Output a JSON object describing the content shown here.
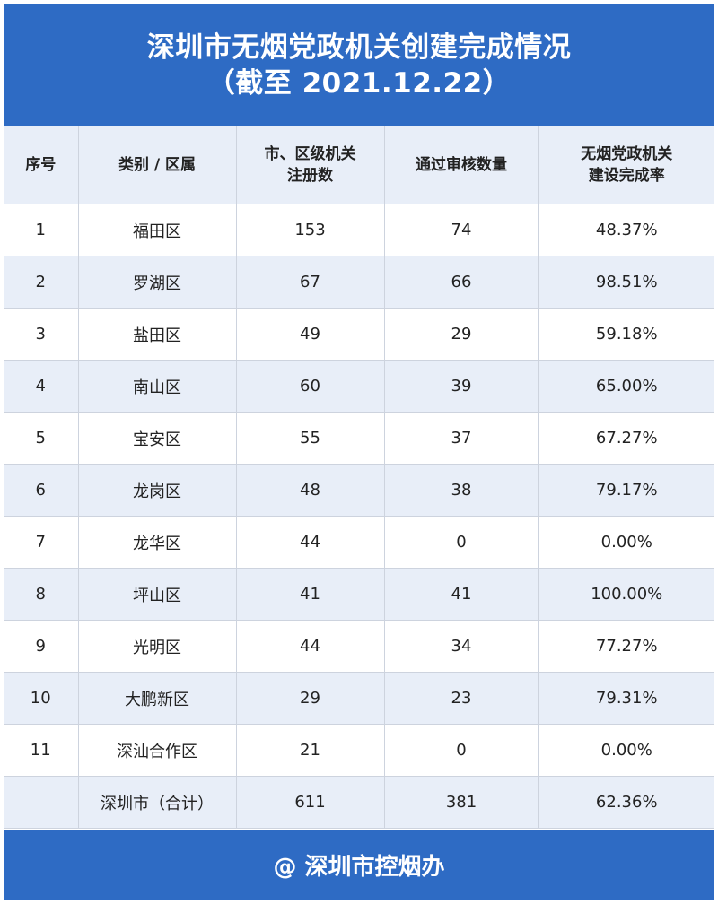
{
  "title": {
    "line1": "深圳市无烟党政机关创建完成情况",
    "line2": "（截至 2021.12.22）"
  },
  "table": {
    "headers": [
      "序号",
      "类别 / 区属",
      "市、区级机关\n注册数",
      "通过审核数量",
      "无烟党政机关\n建设完成率"
    ],
    "header_lines": [
      [
        "序号"
      ],
      [
        "类别 / 区属"
      ],
      [
        "市、区级机关",
        "注册数"
      ],
      [
        "通过审核数量"
      ],
      [
        "无烟党政机关",
        "建设完成率"
      ]
    ],
    "rows": [
      [
        "1",
        "福田区",
        "153",
        "74",
        "48.37%"
      ],
      [
        "2",
        "罗湖区",
        "67",
        "66",
        "98.51%"
      ],
      [
        "3",
        "盐田区",
        "49",
        "29",
        "59.18%"
      ],
      [
        "4",
        "南山区",
        "60",
        "39",
        "65.00%"
      ],
      [
        "5",
        "宝安区",
        "55",
        "37",
        "67.27%"
      ],
      [
        "6",
        "龙岗区",
        "48",
        "38",
        "79.17%"
      ],
      [
        "7",
        "龙华区",
        "44",
        "0",
        "0.00%"
      ],
      [
        "8",
        "坪山区",
        "41",
        "41",
        "100.00%"
      ],
      [
        "9",
        "光明区",
        "44",
        "34",
        "77.27%"
      ],
      [
        "10",
        "大鹏新区",
        "29",
        "23",
        "79.31%"
      ],
      [
        "11",
        "深汕合作区",
        "21",
        "0",
        "0.00%"
      ],
      [
        "",
        "深圳市（合计）",
        "611",
        "381",
        "62.36%"
      ]
    ]
  },
  "footer": "@ 深圳市控烟办",
  "colors": {
    "brand_blue": "#2e6bc4",
    "alt_row": "#e8eef8"
  }
}
